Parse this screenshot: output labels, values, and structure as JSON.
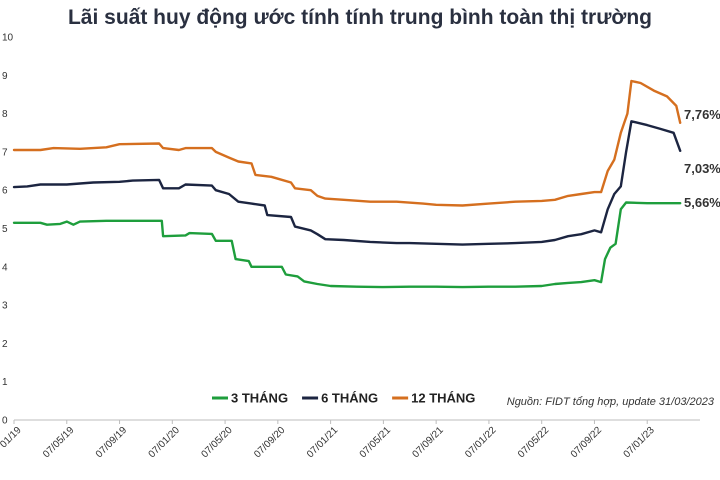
{
  "chart_data": {
    "type": "line",
    "title": "Lãi suất huy động ước tính tính trung bình toàn thị trường",
    "xlabel": "",
    "ylabel": "",
    "ylim": [
      0,
      10
    ],
    "yticks": [
      "0",
      "1",
      "2",
      "3",
      "4",
      "5",
      "6",
      "7",
      "8",
      "9",
      "10"
    ],
    "grid": false,
    "legend_position": "bottom-center",
    "source_note": "Nguồn: FIDT tổng hợp, update 31/03/2023",
    "categories": [
      "01/19",
      "07/05/19",
      "07/09/19",
      "07/01/20",
      "07/05/20",
      "07/09/20",
      "07/01/21",
      "07/05/21",
      "07/09/21",
      "07/01/22",
      "07/05/22",
      "07/09/22",
      "07/01/23"
    ],
    "x": [
      0,
      4,
      8,
      12,
      16,
      20,
      24,
      28,
      32,
      36,
      40,
      44,
      48,
      50.5
    ],
    "series": [
      {
        "name": "3 THÁNG",
        "color": "#1e9e3c",
        "end_label": "5,66%",
        "points": [
          [
            0,
            5.15
          ],
          [
            2,
            5.15
          ],
          [
            2.5,
            5.1
          ],
          [
            3.5,
            5.12
          ],
          [
            4,
            5.18
          ],
          [
            4.5,
            5.1
          ],
          [
            5,
            5.18
          ],
          [
            7,
            5.2
          ],
          [
            10,
            5.2
          ],
          [
            11.2,
            5.2
          ],
          [
            11.3,
            4.8
          ],
          [
            13,
            4.82
          ],
          [
            13.3,
            4.88
          ],
          [
            15,
            4.86
          ],
          [
            15.3,
            4.68
          ],
          [
            16.5,
            4.68
          ],
          [
            16.8,
            4.2
          ],
          [
            17.8,
            4.15
          ],
          [
            18,
            4.0
          ],
          [
            20.3,
            4.0
          ],
          [
            20.6,
            3.8
          ],
          [
            21.5,
            3.75
          ],
          [
            22,
            3.62
          ],
          [
            23,
            3.55
          ],
          [
            24,
            3.5
          ],
          [
            26,
            3.48
          ],
          [
            28,
            3.47
          ],
          [
            30,
            3.48
          ],
          [
            32,
            3.48
          ],
          [
            34,
            3.47
          ],
          [
            36,
            3.48
          ],
          [
            38,
            3.48
          ],
          [
            40,
            3.5
          ],
          [
            41,
            3.55
          ],
          [
            42,
            3.58
          ],
          [
            43,
            3.6
          ],
          [
            44,
            3.65
          ],
          [
            44.5,
            3.6
          ],
          [
            44.8,
            4.2
          ],
          [
            45.2,
            4.5
          ],
          [
            45.6,
            4.6
          ],
          [
            46,
            5.5
          ],
          [
            46.4,
            5.68
          ],
          [
            48,
            5.66
          ],
          [
            50.5,
            5.66
          ]
        ]
      },
      {
        "name": "6 THÁNG",
        "color": "#1c2541",
        "end_label": "7,03%",
        "points": [
          [
            0,
            6.08
          ],
          [
            1,
            6.1
          ],
          [
            2,
            6.15
          ],
          [
            4,
            6.15
          ],
          [
            6,
            6.2
          ],
          [
            8,
            6.22
          ],
          [
            9,
            6.25
          ],
          [
            11,
            6.27
          ],
          [
            11.3,
            6.05
          ],
          [
            12.5,
            6.05
          ],
          [
            13,
            6.15
          ],
          [
            15,
            6.12
          ],
          [
            15.3,
            6.0
          ],
          [
            16.3,
            5.9
          ],
          [
            17,
            5.7
          ],
          [
            18,
            5.65
          ],
          [
            19,
            5.6
          ],
          [
            19.2,
            5.35
          ],
          [
            21,
            5.3
          ],
          [
            21.3,
            5.05
          ],
          [
            22.5,
            4.95
          ],
          [
            23,
            4.85
          ],
          [
            23.6,
            4.72
          ],
          [
            25,
            4.7
          ],
          [
            27,
            4.65
          ],
          [
            29,
            4.62
          ],
          [
            30,
            4.62
          ],
          [
            32,
            4.6
          ],
          [
            34,
            4.58
          ],
          [
            36,
            4.6
          ],
          [
            38,
            4.62
          ],
          [
            40,
            4.65
          ],
          [
            41,
            4.7
          ],
          [
            42,
            4.8
          ],
          [
            43,
            4.85
          ],
          [
            44,
            4.95
          ],
          [
            44.5,
            4.9
          ],
          [
            45,
            5.5
          ],
          [
            45.5,
            5.9
          ],
          [
            46,
            6.1
          ],
          [
            46.4,
            7.0
          ],
          [
            46.8,
            7.8
          ],
          [
            48,
            7.7
          ],
          [
            49,
            7.6
          ],
          [
            50,
            7.5
          ],
          [
            50.5,
            7.03
          ]
        ]
      },
      {
        "name": "12 THÁNG",
        "color": "#d56f1f",
        "end_label": "7,76%",
        "points": [
          [
            0,
            7.05
          ],
          [
            2,
            7.05
          ],
          [
            3,
            7.1
          ],
          [
            5,
            7.08
          ],
          [
            7,
            7.12
          ],
          [
            8,
            7.2
          ],
          [
            11,
            7.22
          ],
          [
            11.3,
            7.1
          ],
          [
            12.5,
            7.05
          ],
          [
            13,
            7.1
          ],
          [
            15,
            7.1
          ],
          [
            15.3,
            7.0
          ],
          [
            16.3,
            6.85
          ],
          [
            17,
            6.75
          ],
          [
            18,
            6.7
          ],
          [
            18.3,
            6.4
          ],
          [
            19.5,
            6.35
          ],
          [
            20,
            6.3
          ],
          [
            21,
            6.2
          ],
          [
            21.3,
            6.05
          ],
          [
            22.5,
            6.0
          ],
          [
            23,
            5.85
          ],
          [
            23.6,
            5.78
          ],
          [
            25,
            5.75
          ],
          [
            27,
            5.7
          ],
          [
            29,
            5.7
          ],
          [
            31,
            5.65
          ],
          [
            32,
            5.62
          ],
          [
            34,
            5.6
          ],
          [
            36,
            5.65
          ],
          [
            38,
            5.7
          ],
          [
            40,
            5.72
          ],
          [
            41,
            5.75
          ],
          [
            42,
            5.85
          ],
          [
            43,
            5.9
          ],
          [
            44,
            5.95
          ],
          [
            44.5,
            5.95
          ],
          [
            45,
            6.5
          ],
          [
            45.5,
            6.8
          ],
          [
            46,
            7.5
          ],
          [
            46.5,
            8.0
          ],
          [
            46.8,
            8.85
          ],
          [
            47.5,
            8.8
          ],
          [
            48.5,
            8.6
          ],
          [
            49.5,
            8.45
          ],
          [
            50.2,
            8.2
          ],
          [
            50.5,
            7.76
          ]
        ]
      }
    ]
  }
}
